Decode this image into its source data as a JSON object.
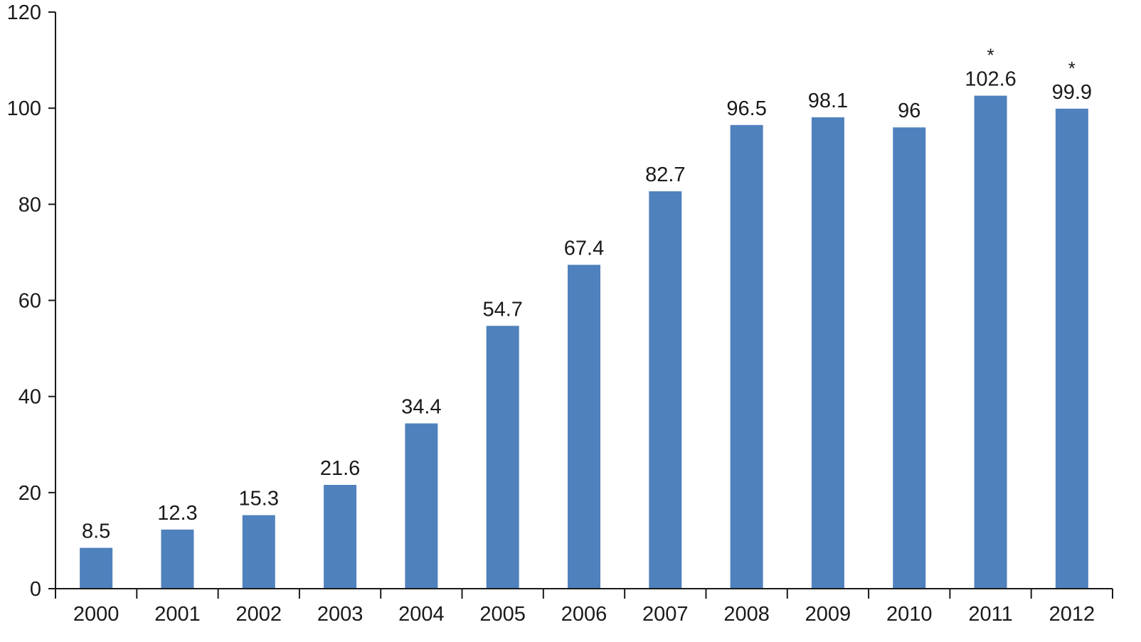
{
  "chart_data": {
    "type": "bar",
    "title": "",
    "xlabel": "",
    "ylabel": "",
    "ylim": [
      0,
      120
    ],
    "yticks": [
      0,
      20,
      40,
      60,
      80,
      100,
      120
    ],
    "grid": false,
    "legend": "none",
    "bar_color": "#4f81bd",
    "categories": [
      "2000",
      "2001",
      "2002",
      "2003",
      "2004",
      "2005",
      "2006",
      "2007",
      "2008",
      "2009",
      "2010",
      "2011",
      "2012"
    ],
    "values": [
      8.5,
      12.3,
      15.3,
      21.6,
      34.4,
      54.7,
      67.4,
      82.7,
      96.5,
      98.1,
      96,
      102.6,
      99.9
    ],
    "labels": [
      "8.5",
      "12.3",
      "15.3",
      "21.6",
      "34.4",
      "54.7",
      "67.4",
      "82.7",
      "96.5",
      "98.1",
      "96",
      "102.6",
      "99.9"
    ],
    "annotations": [
      "",
      "",
      "",
      "",
      "",
      "",
      "",
      "",
      "",
      "",
      "",
      "*",
      "*"
    ]
  }
}
